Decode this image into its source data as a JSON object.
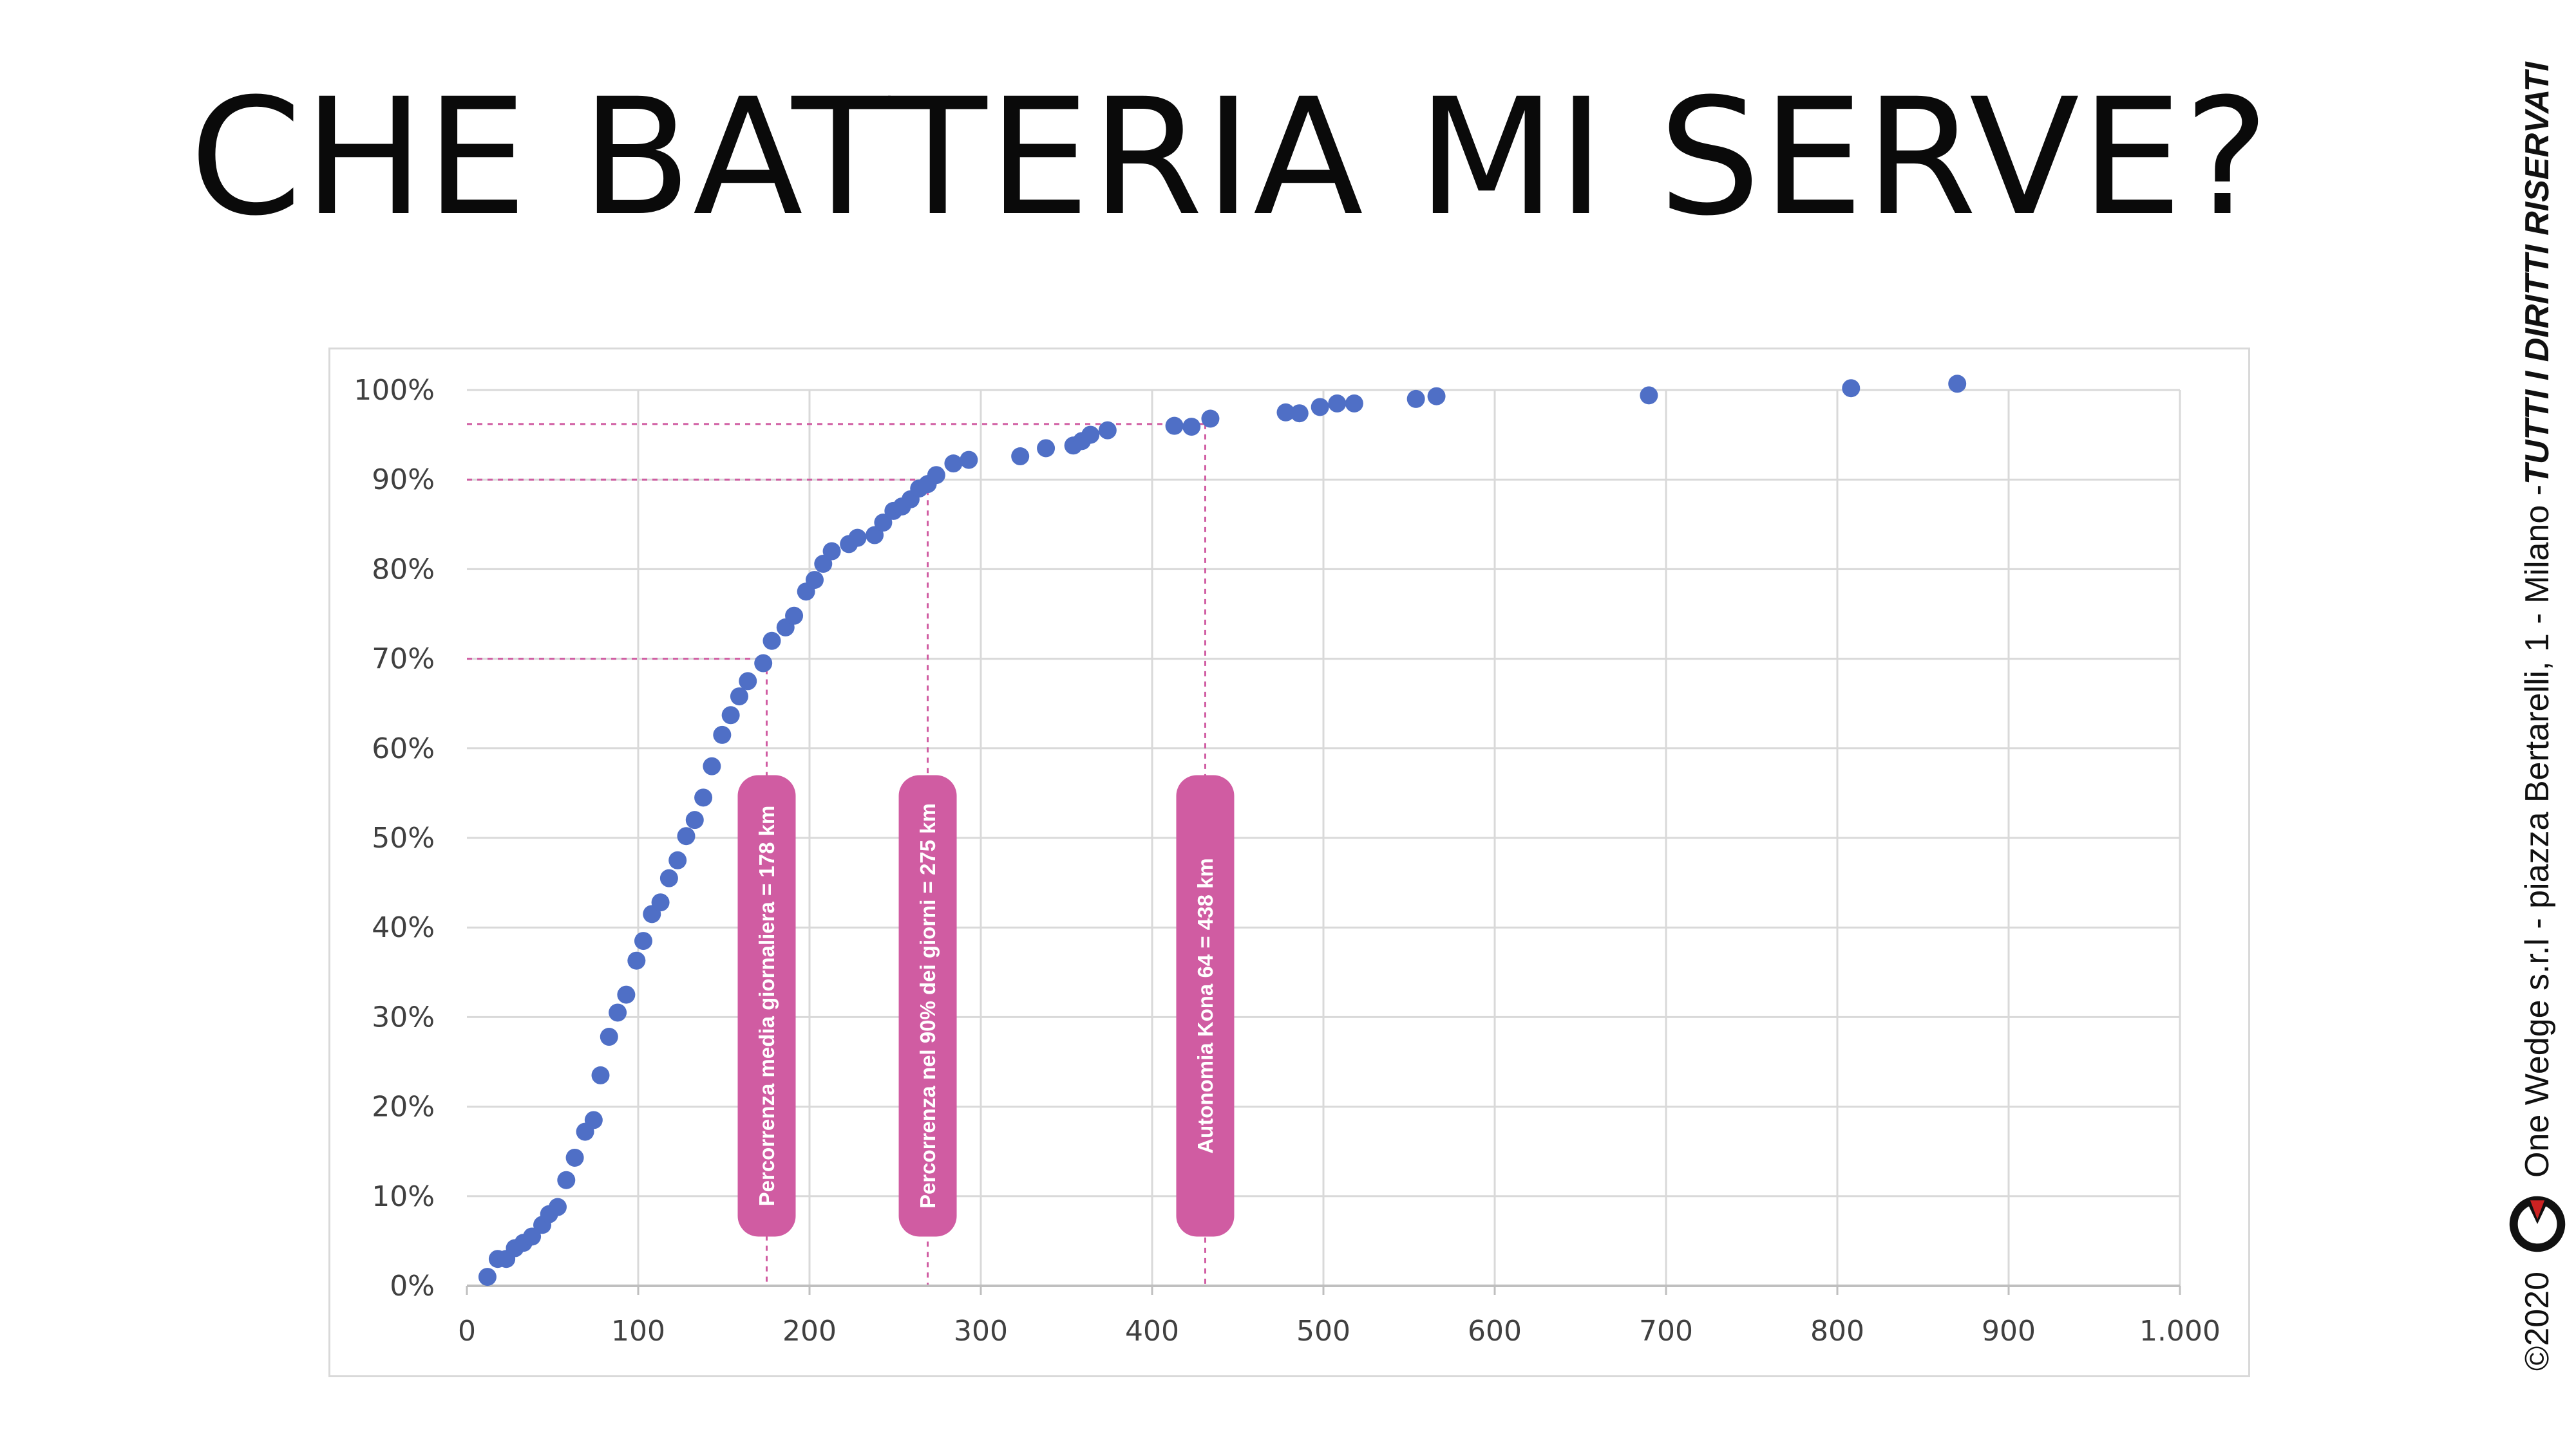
{
  "title": "CHE BATTERIA MI SERVE?",
  "side_text": {
    "copyright": "©2020",
    "company": "One Wedge s.r.l - piazza Bertarelli, 1 - Milano - ",
    "rights": "TUTTI I DIRITTI RISERVATI"
  },
  "colors": {
    "points": "#4f6fc6",
    "pill": "#d05ca2",
    "guide": "#d05ca2",
    "grid": "#d9d9d9",
    "axis": "#bfbfbf"
  },
  "chart_data": {
    "type": "scatter",
    "title": "",
    "xlabel": "",
    "ylabel": "",
    "xlim": [
      0,
      1000
    ],
    "ylim": [
      0,
      1
    ],
    "x_ticks": [
      0,
      100,
      200,
      300,
      400,
      500,
      600,
      700,
      800,
      900,
      1000
    ],
    "x_tick_labels": [
      "0",
      "100",
      "200",
      "300",
      "400",
      "500",
      "600",
      "700",
      "800",
      "900",
      "1.000"
    ],
    "y_ticks": [
      0,
      0.1,
      0.2,
      0.3,
      0.4,
      0.5,
      0.6,
      0.7,
      0.8,
      0.9,
      1.0
    ],
    "y_tick_labels": [
      "0%",
      "10%",
      "20%",
      "30%",
      "40%",
      "50%",
      "60%",
      "70%",
      "80%",
      "90%",
      "100%"
    ],
    "grid": true,
    "series": [
      {
        "points": [
          [
            12,
            0.01
          ],
          [
            18,
            0.03
          ],
          [
            23,
            0.03
          ],
          [
            28,
            0.042
          ],
          [
            33,
            0.048
          ],
          [
            38,
            0.055
          ],
          [
            44,
            0.068
          ],
          [
            48,
            0.08
          ],
          [
            53,
            0.088
          ],
          [
            58,
            0.118
          ],
          [
            63,
            0.143
          ],
          [
            69,
            0.172
          ],
          [
            74,
            0.185
          ],
          [
            78,
            0.235
          ],
          [
            83,
            0.278
          ],
          [
            88,
            0.305
          ],
          [
            93,
            0.325
          ],
          [
            99,
            0.363
          ],
          [
            103,
            0.385
          ],
          [
            108,
            0.415
          ],
          [
            113,
            0.428
          ],
          [
            118,
            0.455
          ],
          [
            123,
            0.475
          ],
          [
            128,
            0.502
          ],
          [
            133,
            0.52
          ],
          [
            138,
            0.545
          ],
          [
            143,
            0.58
          ],
          [
            149,
            0.615
          ],
          [
            154,
            0.637
          ],
          [
            159,
            0.658
          ],
          [
            164,
            0.675
          ],
          [
            173,
            0.695
          ],
          [
            178,
            0.72
          ],
          [
            186,
            0.735
          ],
          [
            191,
            0.748
          ],
          [
            198,
            0.775
          ],
          [
            203,
            0.788
          ],
          [
            208,
            0.806
          ],
          [
            213,
            0.82
          ],
          [
            223,
            0.828
          ],
          [
            228,
            0.835
          ],
          [
            238,
            0.838
          ],
          [
            243,
            0.852
          ],
          [
            249,
            0.865
          ],
          [
            254,
            0.87
          ],
          [
            259,
            0.878
          ],
          [
            264,
            0.89
          ],
          [
            269,
            0.895
          ],
          [
            274,
            0.905
          ],
          [
            284,
            0.918
          ],
          [
            293,
            0.922
          ],
          [
            323,
            0.926
          ],
          [
            338,
            0.935
          ],
          [
            354,
            0.938
          ],
          [
            359,
            0.943
          ],
          [
            364,
            0.95
          ],
          [
            374,
            0.955
          ],
          [
            413,
            0.96
          ],
          [
            423,
            0.959
          ],
          [
            434,
            0.968
          ],
          [
            478,
            0.975
          ],
          [
            486,
            0.974
          ],
          [
            498,
            0.981
          ],
          [
            508,
            0.985
          ],
          [
            518,
            0.985
          ],
          [
            554,
            0.99
          ],
          [
            566,
            0.993
          ],
          [
            690,
            0.994
          ],
          [
            808,
            1.002
          ],
          [
            870,
            1.007
          ]
        ]
      }
    ],
    "guides": [
      {
        "x": 175,
        "y": 0.7
      },
      {
        "x": 269,
        "y": 0.9
      },
      {
        "x": 431,
        "y": 0.962
      }
    ],
    "annotations": [
      {
        "x": 175,
        "text": "Percorrenza media giornaliera = 178 km"
      },
      {
        "x": 269,
        "text": "Percorrenza nel 90% dei giorni = 275 km"
      },
      {
        "x": 431,
        "text": "Autonomia Kona 64 = 438 km"
      }
    ]
  }
}
